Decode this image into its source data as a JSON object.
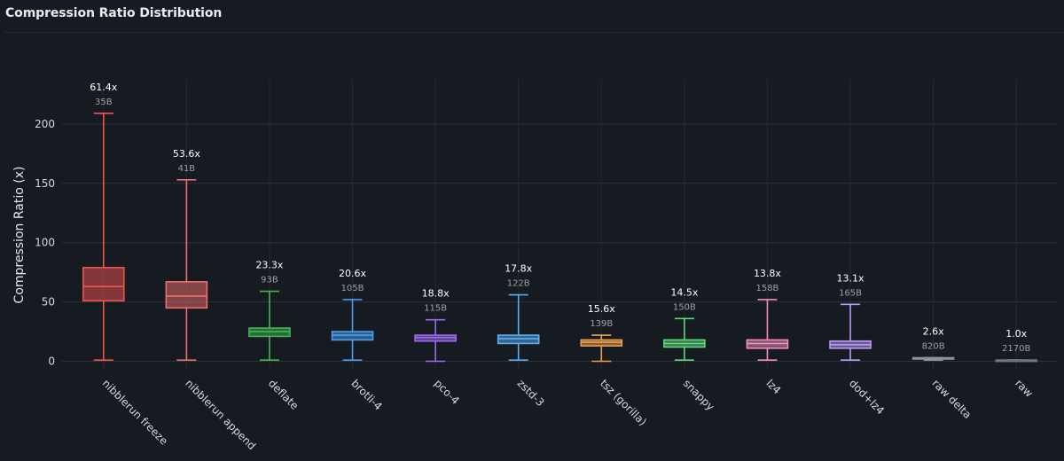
{
  "panel": {
    "title": "Compression Ratio Distribution"
  },
  "chart_data": {
    "type": "box",
    "title": "Compression Ratio Distribution",
    "xlabel": "",
    "ylabel": "Compression Ratio (x)",
    "ylim": [
      -8,
      250
    ],
    "yticks": [
      0,
      50,
      100,
      150,
      200
    ],
    "grid": true,
    "legend": "none",
    "categories": [
      "nibblerun freeze",
      "nibblerun append",
      "deflate",
      "brotli-4",
      "pco-4",
      "zstd-3",
      "tsz (gorilla)",
      "snappy",
      "lz4",
      "dod+lz4",
      "raw delta",
      "raw"
    ],
    "series": [
      {
        "category": "nibblerun freeze",
        "color": "#ef5350",
        "min": 1,
        "q1": 51,
        "median": 63,
        "q3": 79,
        "max": 209,
        "ratio_label": "61.4x",
        "size_label": "35B"
      },
      {
        "category": "nibblerun append",
        "color": "#ee6e6e",
        "min": 1,
        "q1": 45,
        "median": 55,
        "q3": 67,
        "max": 153,
        "ratio_label": "53.6x",
        "size_label": "41B"
      },
      {
        "category": "deflate",
        "color": "#3fb950",
        "min": 1,
        "q1": 21,
        "median": 25,
        "q3": 28,
        "max": 59,
        "ratio_label": "23.3x",
        "size_label": "93B"
      },
      {
        "category": "brotli-4",
        "color": "#4a9eef",
        "min": 1,
        "q1": 18,
        "median": 22,
        "q3": 25,
        "max": 52,
        "ratio_label": "20.6x",
        "size_label": "105B"
      },
      {
        "category": "pco-4",
        "color": "#9d6bf0",
        "min": 0,
        "q1": 17,
        "median": 20,
        "q3": 22,
        "max": 35,
        "ratio_label": "18.8x",
        "size_label": "115B"
      },
      {
        "category": "zstd-3",
        "color": "#5aaef5",
        "min": 1,
        "q1": 15,
        "median": 19,
        "q3": 22,
        "max": 56,
        "ratio_label": "17.8x",
        "size_label": "122B"
      },
      {
        "category": "tsz (gorilla)",
        "color": "#f0a04b",
        "min": 0,
        "q1": 13,
        "median": 16,
        "q3": 18,
        "max": 22,
        "ratio_label": "15.6x",
        "size_label": "139B"
      },
      {
        "category": "snappy",
        "color": "#5fd97a",
        "min": 1,
        "q1": 12,
        "median": 15,
        "q3": 18,
        "max": 36,
        "ratio_label": "14.5x",
        "size_label": "150B"
      },
      {
        "category": "lz4",
        "color": "#f28fc0",
        "min": 1,
        "q1": 11,
        "median": 15,
        "q3": 18,
        "max": 52,
        "ratio_label": "13.8x",
        "size_label": "158B"
      },
      {
        "category": "dod+lz4",
        "color": "#b99cf5",
        "min": 1,
        "q1": 11,
        "median": 14,
        "q3": 17,
        "max": 48,
        "ratio_label": "13.1x",
        "size_label": "165B"
      },
      {
        "category": "raw delta",
        "color": "#8b949e",
        "min": 1,
        "q1": 2,
        "median": 2.6,
        "q3": 3,
        "max": 3,
        "ratio_label": "2.6x",
        "size_label": "820B"
      },
      {
        "category": "raw",
        "color": "#6e7681",
        "min": 1,
        "q1": 1,
        "median": 1,
        "q3": 1,
        "max": 1,
        "ratio_label": "1.0x",
        "size_label": "2170B"
      }
    ]
  }
}
